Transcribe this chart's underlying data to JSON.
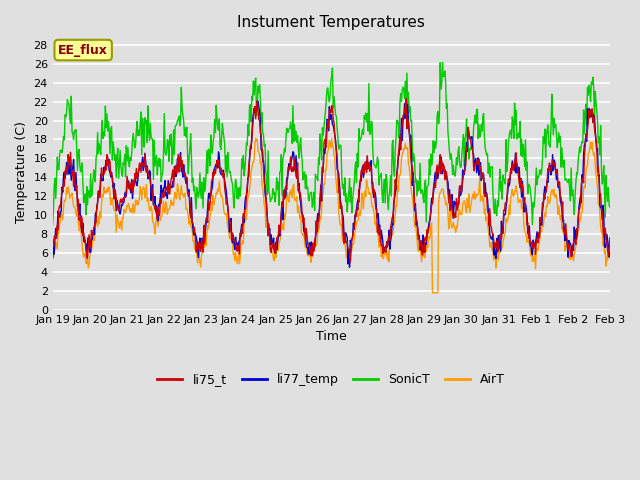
{
  "title": "Instument Temperatures",
  "ylabel": "Temperature (C)",
  "xlabel": "Time",
  "yticks": [
    0,
    2,
    4,
    6,
    8,
    10,
    12,
    14,
    16,
    18,
    20,
    22,
    24,
    26,
    28
  ],
  "ylim": [
    0,
    29
  ],
  "xtick_labels": [
    "Jan 19",
    "Jan 20",
    "Jan 21",
    "Jan 22",
    "Jan 23",
    "Jan 24",
    "Jan 25",
    "Jan 26",
    "Jan 27",
    "Jan 28",
    "Jan 29",
    "Jan 30",
    "Jan 31",
    "Feb 1",
    "Feb 2",
    "Feb 3"
  ],
  "series_colors": {
    "li75_t": "#cc0000",
    "li77_temp": "#0000cc",
    "SonicT": "#00cc00",
    "AirT": "#ff9900"
  },
  "line_width": 1.0,
  "background_color": "#e0e0e0",
  "plot_bg_color": "#e0e0e0",
  "grid_color": "#ffffff",
  "annotation_text": "EE_flux",
  "annotation_box_color": "#ffff99",
  "annotation_box_edge": "#999900",
  "legend_colors": [
    "#cc0000",
    "#0000cc",
    "#00cc00",
    "#ff9900"
  ],
  "legend_labels": [
    "li75_t",
    "li77_temp",
    "SonicT",
    "AirT"
  ]
}
